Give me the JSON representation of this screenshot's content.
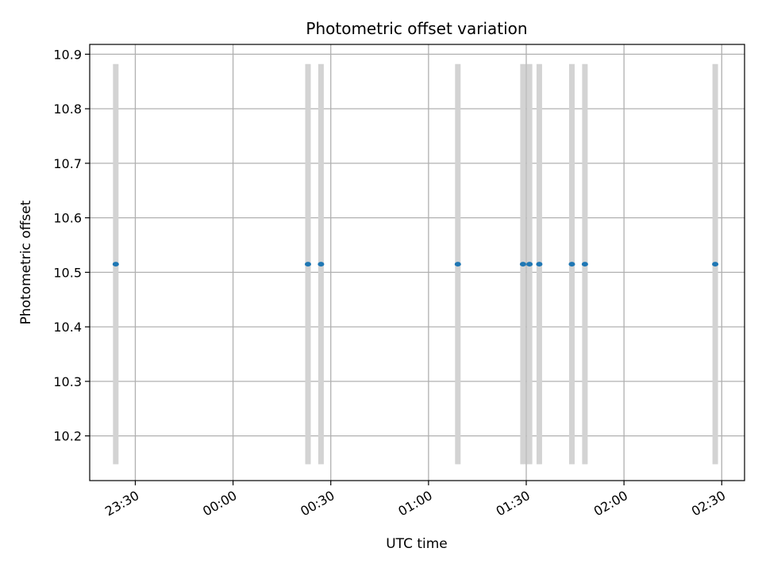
{
  "chart_data": {
    "type": "scatter",
    "title": "Photometric offset variation",
    "xlabel": "UTC time",
    "ylabel": "Photometric offset",
    "grid": true,
    "xlim": [
      "23:16",
      "02:37"
    ],
    "ylim": [
      10.118,
      10.918
    ],
    "xticks": [
      "23:30",
      "00:00",
      "00:30",
      "01:00",
      "01:30",
      "02:00",
      "02:30"
    ],
    "yticks": [
      10.2,
      10.3,
      10.4,
      10.5,
      10.6,
      10.7,
      10.8,
      10.9
    ],
    "colors": {
      "points": "#1f77b4",
      "errorbars": "#d3d3d3",
      "grid": "#b0b0b0"
    },
    "points": [
      {
        "x": "23:24",
        "y": 10.515,
        "ylow": 10.148,
        "yhigh": 10.882
      },
      {
        "x": "00:23",
        "y": 10.515,
        "ylow": 10.148,
        "yhigh": 10.882
      },
      {
        "x": "00:27",
        "y": 10.515,
        "ylow": 10.148,
        "yhigh": 10.882
      },
      {
        "x": "01:09",
        "y": 10.515,
        "ylow": 10.148,
        "yhigh": 10.882
      },
      {
        "x": "01:29",
        "y": 10.515,
        "ylow": 10.148,
        "yhigh": 10.882
      },
      {
        "x": "01:31",
        "y": 10.515,
        "ylow": 10.148,
        "yhigh": 10.882
      },
      {
        "x": "01:34",
        "y": 10.515,
        "ylow": 10.148,
        "yhigh": 10.882
      },
      {
        "x": "01:44",
        "y": 10.515,
        "ylow": 10.148,
        "yhigh": 10.882
      },
      {
        "x": "01:48",
        "y": 10.515,
        "ylow": 10.148,
        "yhigh": 10.882
      },
      {
        "x": "02:28",
        "y": 10.515,
        "ylow": 10.148,
        "yhigh": 10.882
      }
    ]
  }
}
